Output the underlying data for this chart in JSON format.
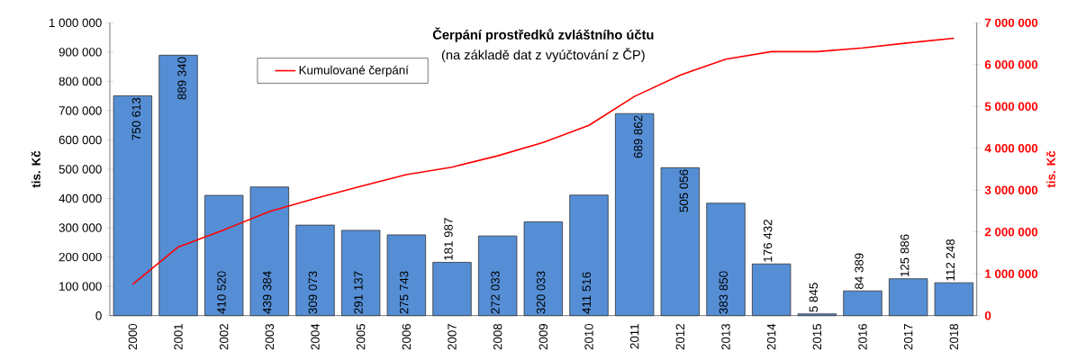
{
  "chart_data": {
    "type": "bar",
    "title": "Čerpání prostředků zvláštního účtu",
    "subtitle": "(na základě dat z vyúčtování z ČP)",
    "ylabel": "tis. Kč",
    "y2label": "tis. Kč",
    "legend": "top left",
    "categories": [
      "2000",
      "2001",
      "2002",
      "2003",
      "2004",
      "2005",
      "2006",
      "2007",
      "2008",
      "2009",
      "2010",
      "2011",
      "2012",
      "2013",
      "2014",
      "2015",
      "2016",
      "2017",
      "2018"
    ],
    "series": [
      {
        "color": "#558ed5",
        "values": [
          750613,
          889340,
          410520,
          439384,
          309073,
          291137,
          275743,
          181987,
          272033,
          320033,
          411516,
          689862,
          505056,
          383850,
          176432,
          5845,
          84389,
          125886,
          112248
        ],
        "value_labels": [
          "750 613",
          "889 340",
          "410 520",
          "439 384",
          "309 073",
          "291 137",
          "275 743",
          "181 987",
          "272 033",
          "320 033",
          "411 516",
          "689 862",
          "505 056",
          "383 850",
          "176 432",
          "5 845",
          "84 389",
          "125 886",
          "112 248"
        ]
      },
      {
        "type": "line",
        "name": "Kumulované čerpání",
        "axis": "y2",
        "color": "#ff0000",
        "values": [
          750000,
          1640000,
          2050000,
          2490000,
          2800000,
          3090000,
          3370000,
          3550000,
          3820000,
          4140000,
          4550000,
          5240000,
          5750000,
          6130000,
          6310000,
          6310000,
          6400000,
          6520000,
          6630000
        ]
      }
    ],
    "ylim": [
      0,
      1000000
    ],
    "yticks": [
      0,
      {
        "value": 100000,
        "label": "100 000"
      },
      {
        "value": 200000,
        "label": "200 000"
      },
      {
        "value": 300000,
        "label": "300 000"
      },
      {
        "value": 400000,
        "label": "400 000"
      },
      {
        "value": 500000,
        "label": "500 000"
      },
      {
        "value": 600000,
        "label": "600 000"
      },
      {
        "value": 700000,
        "label": "700 000"
      },
      {
        "value": 800000,
        "label": "800 000"
      },
      {
        "value": 900000,
        "label": "900 000"
      },
      {
        "value": 1000000,
        "label": "1 000 000"
      }
    ],
    "y2lim": [
      0,
      7000000
    ],
    "y2ticks": [
      0,
      {
        "value": 1000000,
        "label": "1 000 000"
      },
      {
        "value": 2000000,
        "label": "2 000 000"
      },
      {
        "value": 3000000,
        "label": "3 000 000"
      },
      {
        "value": 4000000,
        "label": "4 000 000"
      },
      {
        "value": 5000000,
        "label": "5 000 000"
      },
      {
        "value": 6000000,
        "label": "6 000 000"
      },
      {
        "value": 7000000,
        "label": "7 000 000"
      }
    ]
  }
}
